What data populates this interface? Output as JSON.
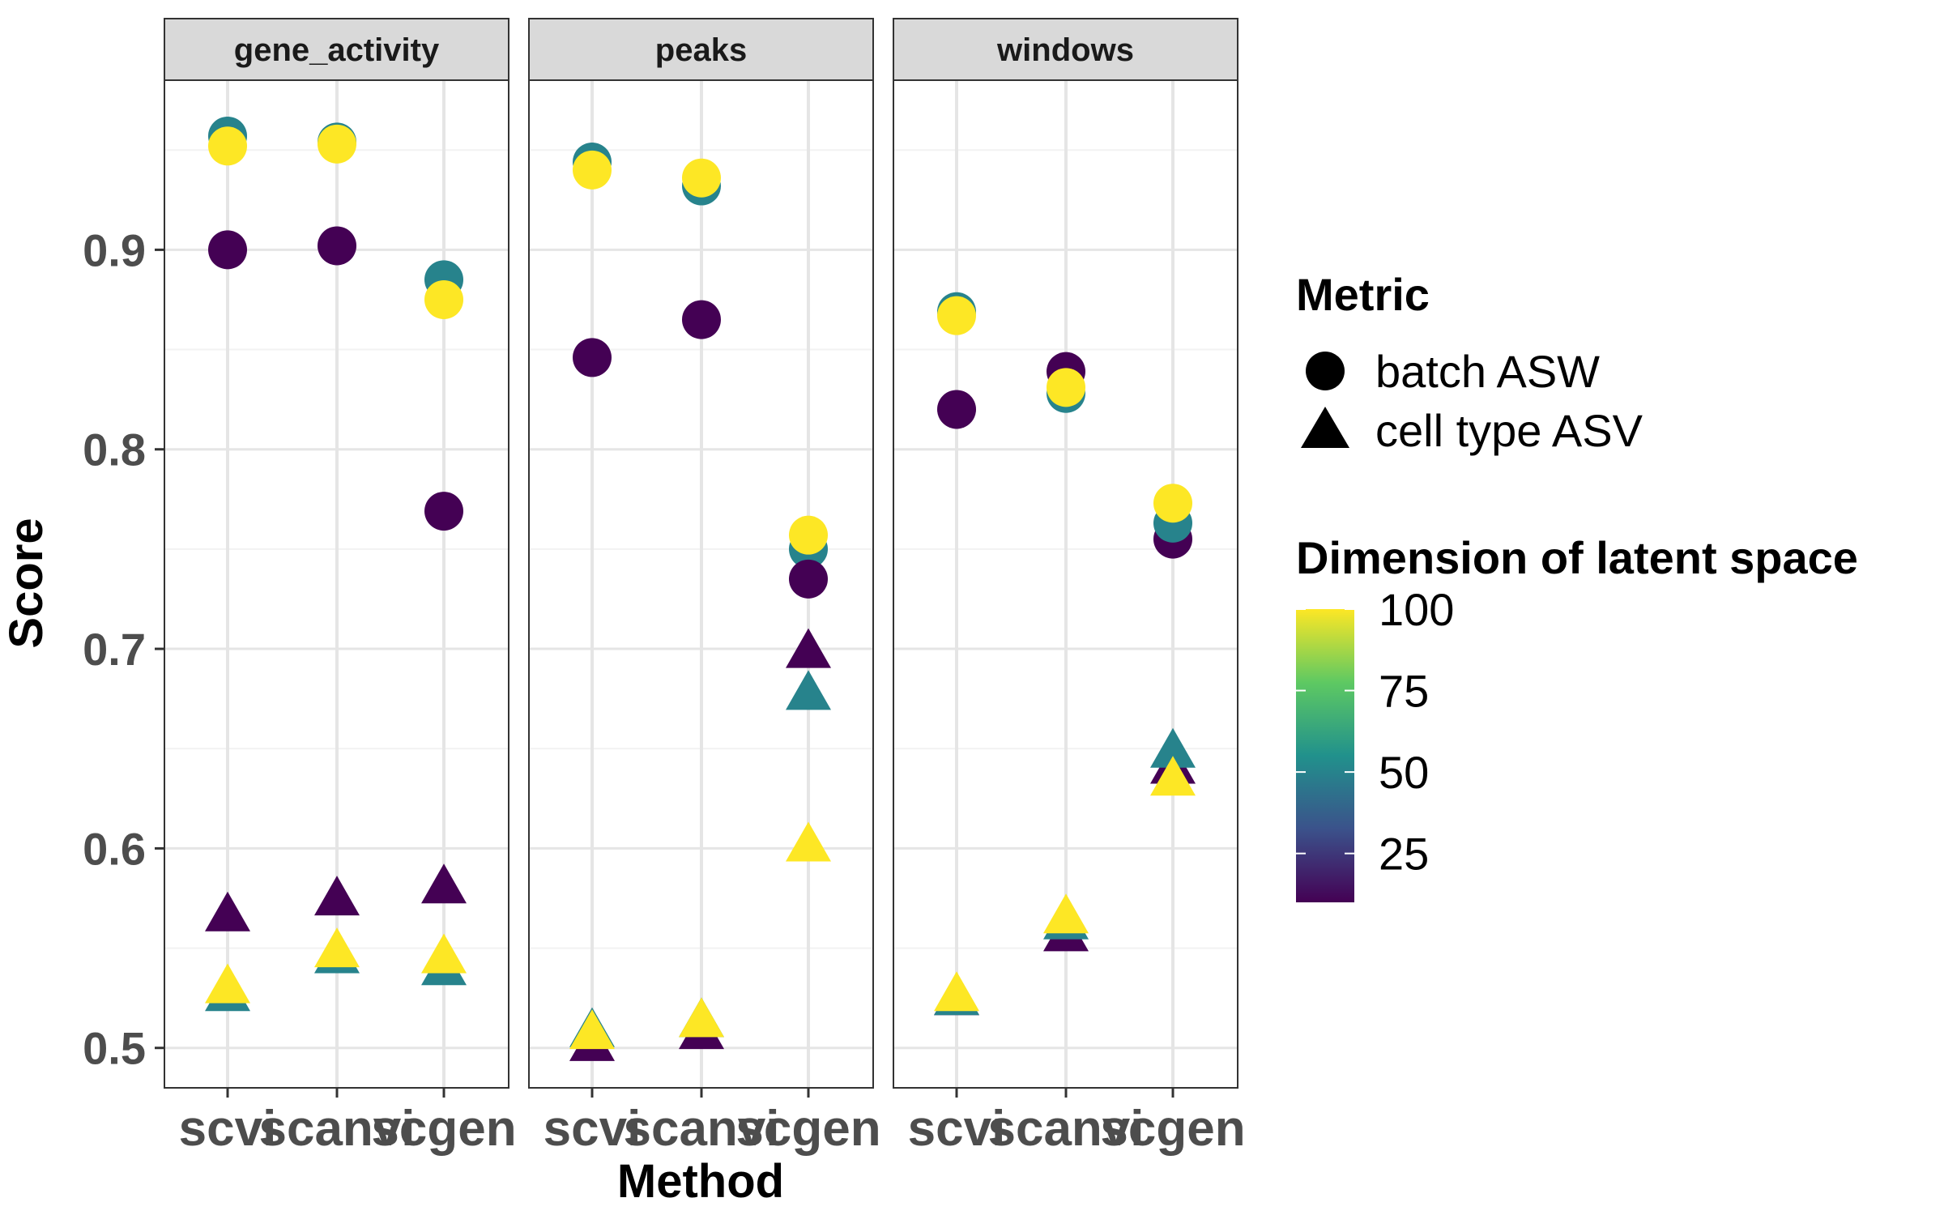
{
  "chart_data": {
    "type": "scatter",
    "ylabel": "Score",
    "xlabel": "Method",
    "ylim": [
      0.48,
      0.985
    ],
    "y_ticks": [
      0.5,
      0.6,
      0.7,
      0.8,
      0.9
    ],
    "y_tick_labels": [
      "0.5",
      "0.6",
      "0.7",
      "0.8",
      "0.9"
    ],
    "methods": [
      "scvi",
      "scanvi",
      "scgen"
    ],
    "panels": [
      "gene_activity",
      "peaks",
      "windows"
    ],
    "legend": {
      "shape_title": "Metric",
      "shape_entries": [
        {
          "label": "batch ASW",
          "shape": "circle"
        },
        {
          "label": "cell type ASV",
          "shape": "triangle"
        }
      ],
      "color_title": "Dimension of latent space",
      "color_range": [
        10,
        100
      ],
      "color_ticks": [
        25,
        50,
        75,
        100
      ],
      "color_tick_labels": [
        "25",
        "50",
        "75",
        "100"
      ],
      "colors": [
        "#440154",
        "#3b528b",
        "#21918c",
        "#5ec962",
        "#fde725"
      ]
    },
    "points": [
      {
        "panel": "gene_activity",
        "method": "scvi",
        "metric": "batch ASW",
        "dim": 50,
        "score": 0.957
      },
      {
        "panel": "gene_activity",
        "method": "scvi",
        "metric": "batch ASW",
        "dim": 100,
        "score": 0.952
      },
      {
        "panel": "gene_activity",
        "method": "scvi",
        "metric": "batch ASW",
        "dim": 10,
        "score": 0.9
      },
      {
        "panel": "gene_activity",
        "method": "scanvi",
        "metric": "batch ASW",
        "dim": 50,
        "score": 0.954
      },
      {
        "panel": "gene_activity",
        "method": "scanvi",
        "metric": "batch ASW",
        "dim": 100,
        "score": 0.953
      },
      {
        "panel": "gene_activity",
        "method": "scanvi",
        "metric": "batch ASW",
        "dim": 10,
        "score": 0.902
      },
      {
        "panel": "gene_activity",
        "method": "scgen",
        "metric": "batch ASW",
        "dim": 50,
        "score": 0.885
      },
      {
        "panel": "gene_activity",
        "method": "scgen",
        "metric": "batch ASW",
        "dim": 100,
        "score": 0.875
      },
      {
        "panel": "gene_activity",
        "method": "scgen",
        "metric": "batch ASW",
        "dim": 10,
        "score": 0.769
      },
      {
        "panel": "gene_activity",
        "method": "scvi",
        "metric": "cell type ASV",
        "dim": 10,
        "score": 0.566
      },
      {
        "panel": "gene_activity",
        "method": "scvi",
        "metric": "cell type ASV",
        "dim": 50,
        "score": 0.526
      },
      {
        "panel": "gene_activity",
        "method": "scvi",
        "metric": "cell type ASV",
        "dim": 100,
        "score": 0.53
      },
      {
        "panel": "gene_activity",
        "method": "scanvi",
        "metric": "cell type ASV",
        "dim": 10,
        "score": 0.574
      },
      {
        "panel": "gene_activity",
        "method": "scanvi",
        "metric": "cell type ASV",
        "dim": 50,
        "score": 0.545
      },
      {
        "panel": "gene_activity",
        "method": "scanvi",
        "metric": "cell type ASV",
        "dim": 100,
        "score": 0.548
      },
      {
        "panel": "gene_activity",
        "method": "scgen",
        "metric": "cell type ASV",
        "dim": 10,
        "score": 0.58
      },
      {
        "panel": "gene_activity",
        "method": "scgen",
        "metric": "cell type ASV",
        "dim": 50,
        "score": 0.539
      },
      {
        "panel": "gene_activity",
        "method": "scgen",
        "metric": "cell type ASV",
        "dim": 100,
        "score": 0.545
      },
      {
        "panel": "peaks",
        "method": "scvi",
        "metric": "batch ASW",
        "dim": 50,
        "score": 0.944
      },
      {
        "panel": "peaks",
        "method": "scvi",
        "metric": "batch ASW",
        "dim": 100,
        "score": 0.94
      },
      {
        "panel": "peaks",
        "method": "scvi",
        "metric": "batch ASW",
        "dim": 10,
        "score": 0.846
      },
      {
        "panel": "peaks",
        "method": "scanvi",
        "metric": "batch ASW",
        "dim": 50,
        "score": 0.932
      },
      {
        "panel": "peaks",
        "method": "scanvi",
        "metric": "batch ASW",
        "dim": 100,
        "score": 0.936
      },
      {
        "panel": "peaks",
        "method": "scanvi",
        "metric": "batch ASW",
        "dim": 10,
        "score": 0.865
      },
      {
        "panel": "peaks",
        "method": "scgen",
        "metric": "batch ASW",
        "dim": 50,
        "score": 0.75
      },
      {
        "panel": "peaks",
        "method": "scgen",
        "metric": "batch ASW",
        "dim": 100,
        "score": 0.757
      },
      {
        "panel": "peaks",
        "method": "scgen",
        "metric": "batch ASW",
        "dim": 10,
        "score": 0.735
      },
      {
        "panel": "peaks",
        "method": "scvi",
        "metric": "cell type ASV",
        "dim": 10,
        "score": 0.501
      },
      {
        "panel": "peaks",
        "method": "scvi",
        "metric": "cell type ASV",
        "dim": 50,
        "score": 0.508
      },
      {
        "panel": "peaks",
        "method": "scvi",
        "metric": "cell type ASV",
        "dim": 100,
        "score": 0.507
      },
      {
        "panel": "peaks",
        "method": "scanvi",
        "metric": "cell type ASV",
        "dim": 10,
        "score": 0.507
      },
      {
        "panel": "peaks",
        "method": "scanvi",
        "metric": "cell type ASV",
        "dim": 50,
        "score": 0.513
      },
      {
        "panel": "peaks",
        "method": "scanvi",
        "metric": "cell type ASV",
        "dim": 100,
        "score": 0.513
      },
      {
        "panel": "peaks",
        "method": "scgen",
        "metric": "cell type ASV",
        "dim": 10,
        "score": 0.698
      },
      {
        "panel": "peaks",
        "method": "scgen",
        "metric": "cell type ASV",
        "dim": 50,
        "score": 0.677
      },
      {
        "panel": "peaks",
        "method": "scgen",
        "metric": "cell type ASV",
        "dim": 100,
        "score": 0.601
      },
      {
        "panel": "windows",
        "method": "scvi",
        "metric": "batch ASW",
        "dim": 50,
        "score": 0.869
      },
      {
        "panel": "windows",
        "method": "scvi",
        "metric": "batch ASW",
        "dim": 100,
        "score": 0.867
      },
      {
        "panel": "windows",
        "method": "scvi",
        "metric": "batch ASW",
        "dim": 10,
        "score": 0.82
      },
      {
        "panel": "windows",
        "method": "scanvi",
        "metric": "batch ASW",
        "dim": 10,
        "score": 0.839
      },
      {
        "panel": "windows",
        "method": "scanvi",
        "metric": "batch ASW",
        "dim": 50,
        "score": 0.828
      },
      {
        "panel": "windows",
        "method": "scanvi",
        "metric": "batch ASW",
        "dim": 100,
        "score": 0.831
      },
      {
        "panel": "windows",
        "method": "scgen",
        "metric": "batch ASW",
        "dim": 10,
        "score": 0.755
      },
      {
        "panel": "windows",
        "method": "scgen",
        "metric": "batch ASW",
        "dim": 50,
        "score": 0.763
      },
      {
        "panel": "windows",
        "method": "scgen",
        "metric": "batch ASW",
        "dim": 100,
        "score": 0.773
      },
      {
        "panel": "windows",
        "method": "scvi",
        "metric": "cell type ASV",
        "dim": 10,
        "score": 0.524
      },
      {
        "panel": "windows",
        "method": "scvi",
        "metric": "cell type ASV",
        "dim": 50,
        "score": 0.524
      },
      {
        "panel": "windows",
        "method": "scvi",
        "metric": "cell type ASV",
        "dim": 100,
        "score": 0.526
      },
      {
        "panel": "windows",
        "method": "scanvi",
        "metric": "cell type ASV",
        "dim": 10,
        "score": 0.556
      },
      {
        "panel": "windows",
        "method": "scanvi",
        "metric": "cell type ASV",
        "dim": 50,
        "score": 0.562
      },
      {
        "panel": "windows",
        "method": "scanvi",
        "metric": "cell type ASV",
        "dim": 100,
        "score": 0.565
      },
      {
        "panel": "windows",
        "method": "scgen",
        "metric": "cell type ASV",
        "dim": 10,
        "score": 0.64
      },
      {
        "panel": "windows",
        "method": "scgen",
        "metric": "cell type ASV",
        "dim": 50,
        "score": 0.648
      },
      {
        "panel": "windows",
        "method": "scgen",
        "metric": "cell type ASV",
        "dim": 100,
        "score": 0.634
      }
    ]
  }
}
